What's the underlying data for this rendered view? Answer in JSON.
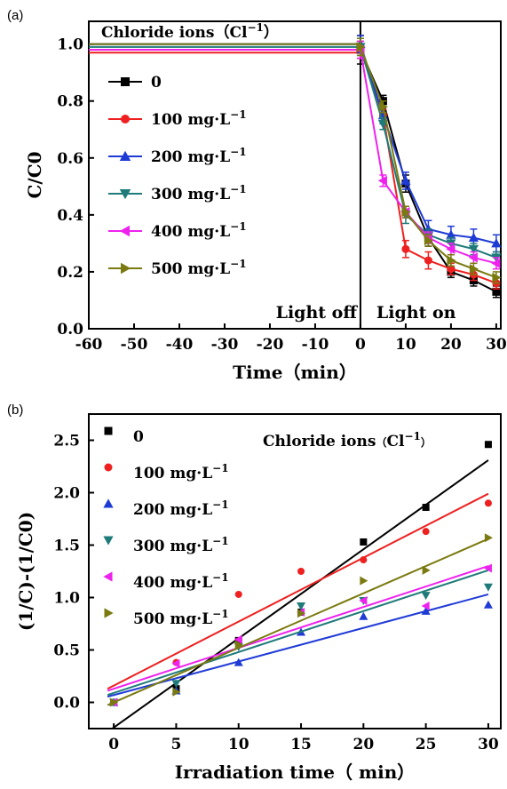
{
  "chart_data": [
    {
      "panel_label": "(a)",
      "type": "line",
      "legend_title": "Chloride ions（Cl",
      "legend_title_sup": "−1",
      "legend_title_close": "）",
      "xlabel": "Time（min）",
      "ylabel": "C/C0",
      "xlim": [
        -60,
        31
      ],
      "ylim": [
        0,
        1.08
      ],
      "xticks": [
        -60,
        -50,
        -40,
        -30,
        -20,
        -10,
        0,
        10,
        20,
        30
      ],
      "yticks": [
        "0.0",
        "0.2",
        "0.4",
        "0.6",
        "0.8",
        "1.0"
      ],
      "annotations": [
        "Light off",
        "Light on"
      ],
      "divider_x": 0,
      "x": [
        -60,
        0,
        0,
        5,
        10,
        15,
        20,
        25,
        30
      ],
      "series": [
        {
          "label": "0",
          "unit": "",
          "color": "#000000",
          "marker": "square",
          "values": [
            1.0,
            1.0,
            0.98,
            0.8,
            0.51,
            0.32,
            0.2,
            0.17,
            0.13
          ],
          "errors": [
            0.0,
            0.0,
            0.05,
            0.02,
            0.03,
            0.03,
            0.02,
            0.02,
            0.02
          ]
        },
        {
          "label": "100 mg·L",
          "unit": "−1",
          "color": "#ee2020",
          "marker": "circle",
          "values": [
            0.97,
            0.97,
            0.98,
            0.75,
            0.28,
            0.24,
            0.21,
            0.19,
            0.16
          ],
          "errors": [
            0.0,
            0.0,
            0.03,
            0.02,
            0.03,
            0.03,
            0.02,
            0.02,
            0.02
          ]
        },
        {
          "label": "200 mg·L",
          "unit": "−1",
          "color": "#1f3bd6",
          "marker": "triangle-up",
          "values": [
            1.0,
            1.0,
            1.0,
            0.75,
            0.52,
            0.35,
            0.33,
            0.32,
            0.3
          ],
          "errors": [
            0.0,
            0.0,
            0.03,
            0.03,
            0.03,
            0.03,
            0.03,
            0.03,
            0.03
          ]
        },
        {
          "label": "300 mg·L",
          "unit": "−1",
          "color": "#1f7a7a",
          "marker": "triangle-down",
          "values": [
            0.99,
            0.99,
            0.99,
            0.72,
            0.4,
            0.33,
            0.3,
            0.28,
            0.25
          ],
          "errors": [
            0.0,
            0.0,
            0.03,
            0.02,
            0.03,
            0.02,
            0.02,
            0.02,
            0.02
          ]
        },
        {
          "label": "400 mg·L",
          "unit": "−1",
          "color": "#ee22ee",
          "marker": "triangle-left",
          "values": [
            0.98,
            0.98,
            0.98,
            0.52,
            0.41,
            0.32,
            0.28,
            0.25,
            0.23
          ],
          "errors": [
            0.0,
            0.0,
            0.03,
            0.02,
            0.02,
            0.02,
            0.02,
            0.02,
            0.02
          ]
        },
        {
          "label": "500 mg·L",
          "unit": "−1",
          "color": "#7a7a10",
          "marker": "triangle-right",
          "values": [
            1.0,
            1.0,
            0.99,
            0.78,
            0.41,
            0.31,
            0.24,
            0.21,
            0.18
          ],
          "errors": [
            0.0,
            0.0,
            0.03,
            0.02,
            0.02,
            0.02,
            0.02,
            0.02,
            0.02
          ]
        }
      ]
    },
    {
      "panel_label": "(b)",
      "type": "scatter",
      "legend_title": "Chloride ions",
      "legend_title_open": "（",
      "legend_title_ion": "Cl",
      "legend_title_sup": "−1",
      "legend_title_close": "）",
      "xlabel": "Irradiation time（ min）",
      "ylabel": "(1/C)-(1/C0)",
      "xlim": [
        -2,
        31
      ],
      "ylim": [
        -0.25,
        2.75
      ],
      "xticks": [
        0,
        5,
        10,
        15,
        20,
        25,
        30
      ],
      "yticks": [
        "0.0",
        "0.5",
        "1.0",
        "1.5",
        "2.0",
        "2.5"
      ],
      "x": [
        0,
        5,
        10,
        15,
        20,
        25,
        30
      ],
      "series": [
        {
          "label": "0",
          "unit": "",
          "color": "#000000",
          "marker": "square",
          "values": [
            0.0,
            0.13,
            0.59,
            0.86,
            1.53,
            1.86,
            2.46
          ],
          "fit": [
            -0.24,
            0.085
          ]
        },
        {
          "label": "100 mg·L",
          "unit": "−1",
          "color": "#ee2020",
          "marker": "circle",
          "values": [
            0.0,
            0.38,
            1.03,
            1.25,
            1.36,
            1.63,
            1.9
          ],
          "fit": [
            0.16,
            0.061
          ]
        },
        {
          "label": "200 mg·L",
          "unit": "−1",
          "color": "#1f3bd6",
          "marker": "triangle-up",
          "values": [
            0.0,
            0.11,
            0.38,
            0.67,
            0.82,
            0.87,
            0.93
          ],
          "fit": [
            0.07,
            0.032
          ]
        },
        {
          "label": "300 mg·L",
          "unit": "−1",
          "color": "#1f7a7a",
          "marker": "triangle-down",
          "values": [
            0.0,
            0.18,
            0.53,
            0.92,
            0.97,
            1.02,
            1.1
          ],
          "fit": [
            0.09,
            0.039
          ]
        },
        {
          "label": "400 mg·L",
          "unit": "−1",
          "color": "#ee22ee",
          "marker": "triangle-left",
          "values": [
            0.0,
            0.37,
            0.6,
            0.86,
            0.97,
            0.92,
            1.28
          ],
          "fit": [
            0.13,
            0.039
          ]
        },
        {
          "label": "500 mg·L",
          "unit": "−1",
          "color": "#7a7a10",
          "marker": "triangle-right",
          "values": [
            0.0,
            0.1,
            0.55,
            0.85,
            1.16,
            1.26,
            1.57
          ],
          "fit": [
            0.0,
            0.052
          ]
        }
      ]
    }
  ]
}
